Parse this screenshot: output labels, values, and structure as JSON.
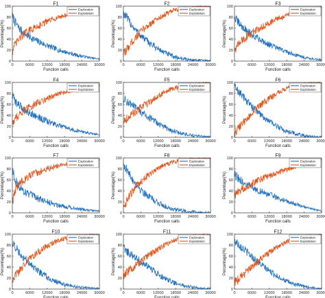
{
  "colors": {
    "exploration": "#1f6fbf",
    "exploitation": "#e0541a",
    "axis": "#333333",
    "legend_border": "#555555"
  },
  "chart_data": [
    {
      "type": "line",
      "title": "F1",
      "xlabel": "Function calls",
      "ylabel": "Percentage(%)",
      "xlim": [
        0,
        30000
      ],
      "ylim": [
        0,
        100
      ],
      "xticks": [
        0,
        6000,
        12000,
        18000,
        24000,
        30000
      ],
      "yticks": [
        0,
        20,
        40,
        60,
        80,
        100
      ],
      "legend": "top-right",
      "grid": false,
      "x": [
        0,
        1000,
        2000,
        3000,
        4000,
        5000,
        6000,
        8000,
        10000,
        12000,
        14000,
        16000,
        18000,
        20000,
        22000,
        24000,
        26000,
        28000,
        30000
      ],
      "series": [
        {
          "name": "Exploration",
          "values": [
            82,
            70,
            62,
            56,
            51,
            47,
            44,
            38,
            33,
            28,
            24,
            20,
            17,
            14,
            11,
            9,
            7,
            5,
            4
          ]
        },
        {
          "name": "Exploitation",
          "values": [
            18,
            30,
            38,
            44,
            49,
            53,
            56,
            62,
            67,
            72,
            76,
            80,
            83,
            86,
            89,
            91,
            93,
            95,
            96
          ]
        }
      ]
    },
    {
      "type": "line",
      "title": "F2",
      "xlabel": "Function calls",
      "ylabel": "Percentage(%)",
      "xlim": [
        0,
        30000
      ],
      "ylim": [
        0,
        100
      ],
      "xticks": [
        0,
        6000,
        12000,
        18000,
        24000,
        30000
      ],
      "yticks": [
        0,
        20,
        40,
        60,
        80,
        100
      ],
      "legend": "top-right",
      "grid": false,
      "x": [
        0,
        1000,
        2000,
        3000,
        4000,
        5000,
        6000,
        8000,
        10000,
        12000,
        14000,
        16000,
        18000,
        20000,
        22000,
        24000,
        26000,
        28000,
        30000
      ],
      "series": [
        {
          "name": "Exploration",
          "values": [
            88,
            80,
            72,
            65,
            58,
            52,
            46,
            37,
            29,
            22,
            16,
            11,
            7,
            5,
            3,
            2,
            2,
            1,
            1
          ]
        },
        {
          "name": "Exploitation",
          "values": [
            12,
            20,
            28,
            35,
            42,
            48,
            54,
            63,
            71,
            78,
            84,
            89,
            93,
            95,
            97,
            98,
            98,
            99,
            99
          ]
        }
      ]
    },
    {
      "type": "line",
      "title": "F3",
      "xlabel": "Function calls",
      "ylabel": "Percentage(%)",
      "xlim": [
        0,
        30000
      ],
      "ylim": [
        0,
        100
      ],
      "xticks": [
        0,
        6000,
        12000,
        18000,
        24000,
        30000
      ],
      "yticks": [
        0,
        20,
        40,
        60,
        80,
        100
      ],
      "legend": "top-right",
      "grid": false,
      "x": [
        0,
        1000,
        2000,
        3000,
        4000,
        5000,
        6000,
        8000,
        10000,
        12000,
        14000,
        16000,
        18000,
        20000,
        22000,
        24000,
        26000,
        28000,
        30000
      ],
      "series": [
        {
          "name": "Exploration",
          "values": [
            80,
            72,
            66,
            61,
            56,
            52,
            48,
            42,
            36,
            30,
            25,
            21,
            17,
            13,
            10,
            7,
            5,
            3,
            2
          ]
        },
        {
          "name": "Exploitation",
          "values": [
            20,
            28,
            34,
            39,
            44,
            48,
            52,
            58,
            64,
            70,
            75,
            79,
            83,
            87,
            90,
            93,
            95,
            97,
            98
          ]
        }
      ]
    },
    {
      "type": "line",
      "title": "F4",
      "xlabel": "Function calls",
      "ylabel": "Percentage(%)",
      "xlim": [
        0,
        30000
      ],
      "ylim": [
        0,
        100
      ],
      "xticks": [
        0,
        6000,
        12000,
        18000,
        24000,
        30000
      ],
      "yticks": [
        0,
        20,
        40,
        60,
        80,
        100
      ],
      "legend": "top-right",
      "grid": false,
      "x": [
        0,
        1000,
        2000,
        3000,
        4000,
        5000,
        6000,
        8000,
        10000,
        12000,
        14000,
        16000,
        18000,
        20000,
        22000,
        24000,
        26000,
        28000,
        30000
      ],
      "series": [
        {
          "name": "Exploration",
          "values": [
            75,
            66,
            60,
            55,
            51,
            48,
            45,
            39,
            34,
            29,
            25,
            21,
            18,
            15,
            12,
            10,
            8,
            6,
            5
          ]
        },
        {
          "name": "Exploitation",
          "values": [
            25,
            34,
            40,
            45,
            49,
            52,
            55,
            61,
            66,
            71,
            75,
            79,
            82,
            85,
            88,
            90,
            92,
            94,
            95
          ]
        }
      ]
    },
    {
      "type": "line",
      "title": "F5",
      "xlabel": "Function calls",
      "ylabel": "Percentage(%)",
      "xlim": [
        0,
        30000
      ],
      "ylim": [
        0,
        100
      ],
      "xticks": [
        0,
        6000,
        12000,
        18000,
        24000,
        30000
      ],
      "yticks": [
        0,
        20,
        40,
        60,
        80,
        100
      ],
      "legend": "top-right",
      "grid": false,
      "x": [
        0,
        1000,
        2000,
        3000,
        4000,
        5000,
        6000,
        8000,
        10000,
        12000,
        14000,
        16000,
        18000,
        20000,
        22000,
        24000,
        26000,
        28000,
        30000
      ],
      "series": [
        {
          "name": "Exploration",
          "values": [
            70,
            66,
            62,
            58,
            54,
            50,
            46,
            39,
            32,
            25,
            19,
            14,
            10,
            7,
            5,
            3,
            2,
            1,
            1
          ]
        },
        {
          "name": "Exploitation",
          "values": [
            30,
            34,
            38,
            42,
            46,
            50,
            54,
            61,
            68,
            75,
            81,
            86,
            90,
            93,
            95,
            97,
            98,
            99,
            99
          ]
        }
      ]
    },
    {
      "type": "line",
      "title": "F6",
      "xlabel": "Function calls",
      "ylabel": "Percentage(%)",
      "xlim": [
        0,
        30000
      ],
      "ylim": [
        0,
        100
      ],
      "xticks": [
        0,
        6000,
        12000,
        18000,
        24000,
        30000
      ],
      "yticks": [
        0,
        20,
        40,
        60,
        80,
        100
      ],
      "legend": "top-right",
      "grid": false,
      "x": [
        0,
        1000,
        2000,
        3000,
        4000,
        5000,
        6000,
        8000,
        10000,
        12000,
        14000,
        16000,
        18000,
        20000,
        22000,
        24000,
        26000,
        28000,
        30000
      ],
      "series": [
        {
          "name": "Exploration",
          "values": [
            92,
            86,
            80,
            74,
            68,
            62,
            56,
            46,
            37,
            29,
            22,
            16,
            11,
            8,
            5,
            3,
            2,
            1,
            1
          ]
        },
        {
          "name": "Exploitation",
          "values": [
            8,
            14,
            20,
            26,
            32,
            38,
            44,
            54,
            63,
            71,
            78,
            84,
            89,
            92,
            95,
            97,
            98,
            99,
            99
          ]
        }
      ]
    },
    {
      "type": "line",
      "title": "F7",
      "xlabel": "Function calls",
      "ylabel": "Percentage(%)",
      "xlim": [
        0,
        30000
      ],
      "ylim": [
        0,
        100
      ],
      "xticks": [
        0,
        6000,
        12000,
        18000,
        24000,
        30000
      ],
      "yticks": [
        0,
        20,
        40,
        60,
        80,
        100
      ],
      "legend": "top-right",
      "grid": false,
      "x": [
        0,
        1000,
        2000,
        3000,
        4000,
        5000,
        6000,
        8000,
        10000,
        12000,
        14000,
        16000,
        18000,
        20000,
        22000,
        24000,
        26000,
        28000,
        30000
      ],
      "series": [
        {
          "name": "Exploration",
          "values": [
            80,
            60,
            50,
            44,
            40,
            36,
            33,
            28,
            24,
            20,
            17,
            14,
            12,
            10,
            8,
            6,
            5,
            4,
            3
          ]
        },
        {
          "name": "Exploitation",
          "values": [
            20,
            40,
            50,
            56,
            60,
            64,
            67,
            72,
            76,
            80,
            83,
            86,
            88,
            90,
            92,
            94,
            95,
            96,
            97
          ]
        }
      ]
    },
    {
      "type": "line",
      "title": "F8",
      "xlabel": "Function calls",
      "ylabel": "Percentage(%)",
      "xlim": [
        0,
        30000
      ],
      "ylim": [
        0,
        100
      ],
      "xticks": [
        0,
        6000,
        12000,
        18000,
        24000,
        30000
      ],
      "yticks": [
        0,
        20,
        40,
        60,
        80,
        100
      ],
      "legend": "top-right",
      "grid": false,
      "x": [
        0,
        1000,
        2000,
        3000,
        4000,
        5000,
        6000,
        8000,
        10000,
        12000,
        14000,
        16000,
        18000,
        20000,
        22000,
        24000,
        26000,
        28000,
        30000
      ],
      "series": [
        {
          "name": "Exploration",
          "values": [
            90,
            80,
            70,
            62,
            55,
            48,
            42,
            33,
            25,
            18,
            13,
            9,
            6,
            4,
            3,
            2,
            1,
            1,
            1
          ]
        },
        {
          "name": "Exploitation",
          "values": [
            10,
            20,
            30,
            38,
            45,
            52,
            58,
            67,
            75,
            82,
            87,
            91,
            94,
            96,
            97,
            98,
            99,
            99,
            99
          ]
        }
      ]
    },
    {
      "type": "line",
      "title": "F9",
      "xlabel": "Function calls",
      "ylabel": "Percentage(%)",
      "xlim": [
        0,
        30000
      ],
      "ylim": [
        0,
        100
      ],
      "xticks": [
        0,
        6000,
        12000,
        18000,
        24000,
        30000
      ],
      "yticks": [
        0,
        20,
        40,
        60,
        80,
        100
      ],
      "legend": "top-right",
      "grid": false,
      "x": [
        0,
        1000,
        2000,
        3000,
        4000,
        5000,
        6000,
        8000,
        10000,
        12000,
        14000,
        16000,
        18000,
        20000,
        22000,
        24000,
        26000,
        28000,
        30000
      ],
      "series": [
        {
          "name": "Exploration",
          "values": [
            70,
            64,
            59,
            55,
            52,
            49,
            46,
            41,
            37,
            33,
            29,
            25,
            21,
            18,
            14,
            11,
            8,
            5,
            3
          ]
        },
        {
          "name": "Exploitation",
          "values": [
            30,
            36,
            41,
            45,
            48,
            51,
            54,
            59,
            63,
            67,
            71,
            75,
            79,
            82,
            86,
            89,
            92,
            95,
            97
          ]
        }
      ]
    },
    {
      "type": "line",
      "title": "F10",
      "xlabel": "Function calls",
      "ylabel": "Percentage(%)",
      "xlim": [
        0,
        30000
      ],
      "ylim": [
        0,
        100
      ],
      "xticks": [
        0,
        6000,
        12000,
        18000,
        24000,
        30000
      ],
      "yticks": [
        0,
        20,
        40,
        60,
        80,
        100
      ],
      "legend": "top-right",
      "grid": false,
      "x": [
        0,
        1000,
        2000,
        3000,
        4000,
        5000,
        6000,
        8000,
        10000,
        12000,
        14000,
        16000,
        18000,
        20000,
        22000,
        24000,
        26000,
        28000,
        30000
      ],
      "series": [
        {
          "name": "Exploration",
          "values": [
            85,
            77,
            70,
            63,
            57,
            51,
            46,
            37,
            29,
            22,
            16,
            12,
            8,
            6,
            4,
            3,
            2,
            1,
            1
          ]
        },
        {
          "name": "Exploitation",
          "values": [
            15,
            23,
            30,
            37,
            43,
            49,
            54,
            63,
            71,
            78,
            84,
            88,
            92,
            94,
            96,
            97,
            98,
            99,
            99
          ]
        }
      ]
    },
    {
      "type": "line",
      "title": "F11",
      "xlabel": "Function calls",
      "ylabel": "Percentage(%)",
      "xlim": [
        0,
        30000
      ],
      "ylim": [
        0,
        100
      ],
      "xticks": [
        0,
        6000,
        12000,
        18000,
        24000,
        30000
      ],
      "yticks": [
        0,
        20,
        40,
        60,
        80,
        100
      ],
      "legend": "top-right",
      "grid": false,
      "x": [
        0,
        1000,
        2000,
        3000,
        4000,
        5000,
        6000,
        8000,
        10000,
        12000,
        14000,
        16000,
        18000,
        20000,
        22000,
        24000,
        26000,
        28000,
        30000
      ],
      "series": [
        {
          "name": "Exploration",
          "values": [
            75,
            70,
            66,
            62,
            58,
            54,
            50,
            42,
            34,
            27,
            20,
            15,
            10,
            7,
            5,
            3,
            2,
            1,
            1
          ]
        },
        {
          "name": "Exploitation",
          "values": [
            25,
            30,
            34,
            38,
            42,
            46,
            50,
            58,
            66,
            73,
            80,
            85,
            90,
            93,
            95,
            97,
            98,
            99,
            99
          ]
        }
      ]
    },
    {
      "type": "line",
      "title": "F12",
      "xlabel": "Function calls",
      "ylabel": "Percentage(%)",
      "xlim": [
        0,
        30000
      ],
      "ylim": [
        0,
        100
      ],
      "xticks": [
        0,
        6000,
        12000,
        18000,
        24000,
        30000
      ],
      "yticks": [
        0,
        20,
        40,
        60,
        80,
        100
      ],
      "legend": "top-right",
      "grid": false,
      "x": [
        0,
        1000,
        2000,
        3000,
        4000,
        5000,
        6000,
        8000,
        10000,
        12000,
        14000,
        16000,
        18000,
        20000,
        22000,
        24000,
        26000,
        28000,
        30000
      ],
      "series": [
        {
          "name": "Exploration",
          "values": [
            88,
            84,
            79,
            74,
            69,
            64,
            59,
            50,
            41,
            33,
            26,
            20,
            14,
            10,
            7,
            5,
            3,
            2,
            1
          ]
        },
        {
          "name": "Exploitation",
          "values": [
            12,
            16,
            21,
            26,
            31,
            36,
            41,
            50,
            59,
            67,
            74,
            80,
            86,
            90,
            93,
            95,
            97,
            98,
            99
          ]
        }
      ]
    }
  ]
}
